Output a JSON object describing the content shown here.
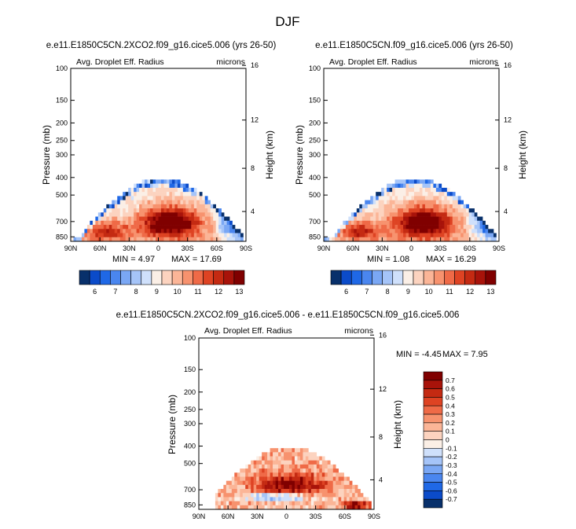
{
  "figure_title": "DJF",
  "colors": {
    "diverging": [
      "#08306b",
      "#0b4bc9",
      "#1f68e6",
      "#4a86ef",
      "#7aa7f4",
      "#a5c4f8",
      "#cfe0fb",
      "#fbefe6",
      "#fcd3bf",
      "#fbb597",
      "#f7926e",
      "#ef6a47",
      "#de4323",
      "#c42a12",
      "#a8130a",
      "#800000"
    ]
  },
  "chart_data": [
    {
      "type": "heatmap",
      "id": "panel1",
      "title": "e.e11.E1850C5CN.2XCO2.f09_g16.cice5.006 (yrs 26-50)",
      "left_label": "Avg. Droplet Eff. Radius",
      "right_label": "microns",
      "ylabel": "Pressure (mb)",
      "y2label": "Height (km)",
      "xlabel": "",
      "x_ticks": [
        "90N",
        "60N",
        "30N",
        "0",
        "30S",
        "60S",
        "90S"
      ],
      "y_ticks": [
        "100",
        "150",
        "200",
        "250",
        "300",
        "400",
        "500",
        "700",
        "850"
      ],
      "y2_ticks": [
        "16",
        "12",
        "8",
        "4"
      ],
      "min_text": "MIN =   4.97",
      "max_text": "MAX =  17.69",
      "colorbar_labels": [
        "6",
        "7",
        "8",
        "9",
        "10",
        "11",
        "12",
        "13"
      ],
      "field": "abs",
      "peak_value": 17.69
    },
    {
      "type": "heatmap",
      "id": "panel2",
      "title": "e.e11.E1850C5CN.f09_g16.cice5.006 (yrs 26-50)",
      "left_label": "Avg. Droplet Eff. Radius",
      "right_label": "microns",
      "ylabel": "Pressure (mb)",
      "y2label": "Height (km)",
      "xlabel": "",
      "x_ticks": [
        "90N",
        "60N",
        "30N",
        "0",
        "30S",
        "60S",
        "90S"
      ],
      "y_ticks": [
        "100",
        "150",
        "200",
        "250",
        "300",
        "400",
        "500",
        "700",
        "850"
      ],
      "y2_ticks": [
        "16",
        "12",
        "8",
        "4"
      ],
      "min_text": "MIN =   1.08",
      "max_text": "MAX =  16.29",
      "colorbar_labels": [
        "6",
        "7",
        "8",
        "9",
        "10",
        "11",
        "12",
        "13"
      ],
      "field": "abs",
      "peak_value": 16.29
    },
    {
      "type": "heatmap",
      "id": "panel3",
      "title": "e.e11.E1850C5CN.2XCO2.f09_g16.cice5.006 - e.e11.E1850C5CN.f09_g16.cice5.006",
      "left_label": "Avg. Droplet Eff. Radius",
      "right_label": "microns",
      "ylabel": "Pressure (mb)",
      "y2label": "Height (km)",
      "xlabel": "",
      "x_ticks": [
        "90N",
        "60N",
        "30N",
        "0",
        "30S",
        "60S",
        "90S"
      ],
      "y_ticks": [
        "100",
        "150",
        "200",
        "250",
        "300",
        "400",
        "500",
        "700",
        "850"
      ],
      "y2_ticks": [
        "16",
        "12",
        "8",
        "4"
      ],
      "min_text": "MIN =  -4.45",
      "max_text": "MAX =   7.95",
      "colorbar_labels": [
        "0.7",
        "0.6",
        "0.5",
        "0.4",
        "0.3",
        "0.2",
        "0.1",
        "0",
        "-0.1",
        "-0.2",
        "-0.3",
        "-0.4",
        "-0.5",
        "-0.6",
        "-0.7"
      ],
      "field": "diff",
      "peak_value": 7.95
    }
  ]
}
